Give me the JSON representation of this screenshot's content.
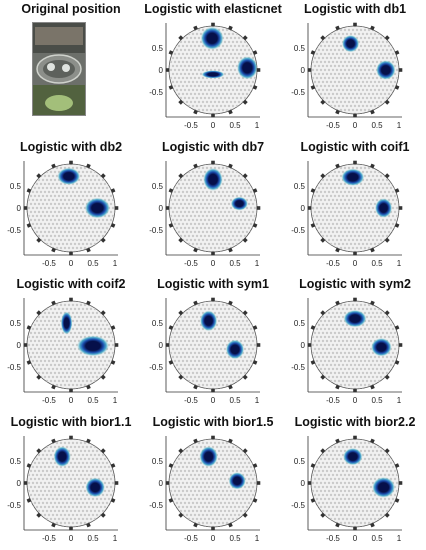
{
  "chart_data": [
    {
      "type": "image",
      "title": "Original position"
    },
    {
      "type": "heatmap",
      "title": "Logistic with elasticnet",
      "xticks": [
        "-0.5",
        "0",
        "0.5",
        "1"
      ],
      "yticks": [
        "0.5",
        "0",
        "-0.5"
      ],
      "xlim": [
        -1,
        1
      ],
      "ylim": [
        -1,
        1
      ],
      "blobs": [
        {
          "x": -0.02,
          "y": 0.72,
          "rx": 0.2,
          "ry": 0.2
        },
        {
          "x": 0.78,
          "y": 0.05,
          "rx": 0.18,
          "ry": 0.2
        },
        {
          "x": 0.0,
          "y": -0.1,
          "rx": 0.2,
          "ry": 0.07
        }
      ]
    },
    {
      "type": "heatmap",
      "title": "Logistic with db1",
      "xticks": [
        "-0.5",
        "0",
        "0.5",
        "1"
      ],
      "yticks": [
        "0.5",
        "0",
        "-0.5"
      ],
      "xlim": [
        -1,
        1
      ],
      "ylim": [
        -1,
        1
      ],
      "blobs": [
        {
          "x": -0.1,
          "y": 0.6,
          "rx": 0.15,
          "ry": 0.15
        },
        {
          "x": 0.7,
          "y": 0.0,
          "rx": 0.17,
          "ry": 0.17
        }
      ]
    },
    {
      "type": "heatmap",
      "title": "Logistic with db2",
      "xticks": [
        "-0.5",
        "0",
        "0.5",
        "1"
      ],
      "yticks": [
        "0.5",
        "0",
        "-0.5"
      ],
      "xlim": [
        -1,
        1
      ],
      "ylim": [
        -1,
        1
      ],
      "blobs": [
        {
          "x": -0.05,
          "y": 0.72,
          "rx": 0.2,
          "ry": 0.15
        },
        {
          "x": 0.6,
          "y": 0.0,
          "rx": 0.22,
          "ry": 0.18
        }
      ]
    },
    {
      "type": "heatmap",
      "title": "Logistic with db7",
      "xticks": [
        "-0.5",
        "0",
        "0.5",
        "1"
      ],
      "yticks": [
        "0.5",
        "0",
        "-0.5"
      ],
      "xlim": [
        -1,
        1
      ],
      "ylim": [
        -1,
        1
      ],
      "blobs": [
        {
          "x": 0.0,
          "y": 0.65,
          "rx": 0.17,
          "ry": 0.2
        },
        {
          "x": 0.6,
          "y": 0.1,
          "rx": 0.15,
          "ry": 0.12
        }
      ]
    },
    {
      "type": "heatmap",
      "title": "Logistic with coif1",
      "xticks": [
        "-0.5",
        "0",
        "0.5",
        "1"
      ],
      "yticks": [
        "0.5",
        "0",
        "-0.5"
      ],
      "xlim": [
        -1,
        1
      ],
      "ylim": [
        -1,
        1
      ],
      "blobs": [
        {
          "x": -0.05,
          "y": 0.7,
          "rx": 0.2,
          "ry": 0.15
        },
        {
          "x": 0.65,
          "y": 0.0,
          "rx": 0.15,
          "ry": 0.17
        }
      ]
    },
    {
      "type": "heatmap",
      "title": "Logistic with coif2",
      "xticks": [
        "-0.5",
        "0",
        "0.5",
        "1"
      ],
      "yticks": [
        "0.5",
        "0",
        "-0.5"
      ],
      "xlim": [
        -1,
        1
      ],
      "ylim": [
        -1,
        1
      ],
      "blobs": [
        {
          "x": -0.1,
          "y": 0.5,
          "rx": 0.1,
          "ry": 0.2
        },
        {
          "x": 0.5,
          "y": -0.02,
          "rx": 0.28,
          "ry": 0.18
        }
      ]
    },
    {
      "type": "heatmap",
      "title": "Logistic with sym1",
      "xticks": [
        "-0.5",
        "0",
        "0.5",
        "1"
      ],
      "yticks": [
        "0.5",
        "0",
        "-0.5"
      ],
      "xlim": [
        -1,
        1
      ],
      "ylim": [
        -1,
        1
      ],
      "blobs": [
        {
          "x": -0.1,
          "y": 0.55,
          "rx": 0.15,
          "ry": 0.18
        },
        {
          "x": 0.5,
          "y": -0.1,
          "rx": 0.16,
          "ry": 0.17
        }
      ]
    },
    {
      "type": "heatmap",
      "title": "Logistic with sym2",
      "xticks": [
        "-0.5",
        "0",
        "0.5",
        "1"
      ],
      "yticks": [
        "0.5",
        "0",
        "-0.5"
      ],
      "xlim": [
        -1,
        1
      ],
      "ylim": [
        -1,
        1
      ],
      "blobs": [
        {
          "x": 0.0,
          "y": 0.6,
          "rx": 0.2,
          "ry": 0.15
        },
        {
          "x": 0.6,
          "y": -0.05,
          "rx": 0.18,
          "ry": 0.16
        }
      ]
    },
    {
      "type": "heatmap",
      "title": "Logistic with bior1.1",
      "xticks": [
        "-0.5",
        "0",
        "0.5",
        "1"
      ],
      "yticks": [
        "0.5",
        "0",
        "-0.5"
      ],
      "xlim": [
        -1,
        1
      ],
      "ylim": [
        -1,
        1
      ],
      "blobs": [
        {
          "x": -0.2,
          "y": 0.6,
          "rx": 0.15,
          "ry": 0.18
        },
        {
          "x": 0.55,
          "y": -0.1,
          "rx": 0.17,
          "ry": 0.17
        }
      ]
    },
    {
      "type": "heatmap",
      "title": "Logistic with bior1.5",
      "xticks": [
        "-0.5",
        "0",
        "0.5",
        "1"
      ],
      "yticks": [
        "0.5",
        "0",
        "-0.5"
      ],
      "xlim": [
        -1,
        1
      ],
      "ylim": [
        -1,
        1
      ],
      "blobs": [
        {
          "x": -0.1,
          "y": 0.6,
          "rx": 0.16,
          "ry": 0.18
        },
        {
          "x": 0.55,
          "y": 0.05,
          "rx": 0.15,
          "ry": 0.15
        }
      ]
    },
    {
      "type": "heatmap",
      "title": "Logistic with bior2.2",
      "xticks": [
        "-0.5",
        "0",
        "0.5",
        "1"
      ],
      "yticks": [
        "0.5",
        "0",
        "-0.5"
      ],
      "xlim": [
        -1,
        1
      ],
      "ylim": [
        -1,
        1
      ],
      "blobs": [
        {
          "x": -0.05,
          "y": 0.6,
          "rx": 0.17,
          "ry": 0.15
        },
        {
          "x": 0.65,
          "y": -0.1,
          "rx": 0.2,
          "ry": 0.18
        }
      ]
    }
  ],
  "colors": {
    "mesh": "#b9b9b9",
    "mesh_bg": "#f2f2f2",
    "blob_core": "#06104a",
    "blob_mid": "#1b4fb0",
    "blob_edge": "#3aa0c8",
    "blob_halo": "#8fd6d0",
    "electrode": "#333333"
  }
}
